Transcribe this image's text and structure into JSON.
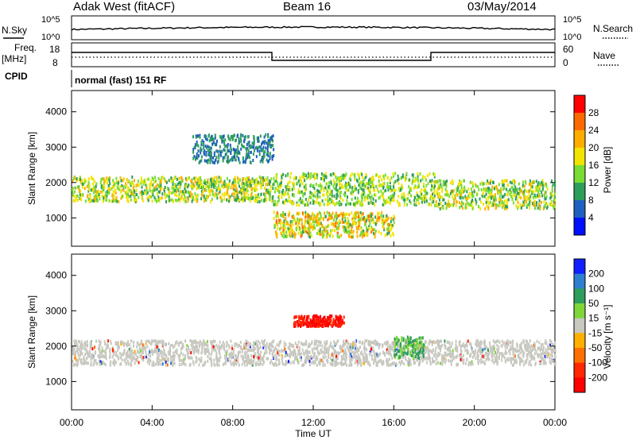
{
  "header": {
    "title_left": "Adak West (fitACF)",
    "title_mid": "Beam 16",
    "title_right": "03/May/2014"
  },
  "top_panels": {
    "nsky_label": "N.Sky",
    "nsearch_label": "N.Search",
    "noise_ticks": [
      "10^5",
      "10^0"
    ],
    "freq_label": "Freq.",
    "freq_unit": "[MHz]",
    "freq_ticks": [
      "18",
      "8"
    ],
    "nave_label": "Nave",
    "nave_ticks": [
      "60",
      "0"
    ],
    "cpid_label": "CPID",
    "cpid_text": "normal (fast) 151 RF"
  },
  "chart_data": [
    {
      "type": "heatmap",
      "panel": "power",
      "ylabel": "Slant Range [km]",
      "xlim_hours": [
        0,
        24
      ],
      "ylim_km": [
        200,
        4600
      ],
      "y_ticks": [
        "4000",
        "3000",
        "2000",
        "1000"
      ],
      "x_ticks": [
        "00:00",
        "04:00",
        "08:00",
        "12:00",
        "16:00",
        "20:00",
        "00:00"
      ],
      "colorbar": {
        "label": "Power [dB]",
        "ticks": [
          "28",
          "24",
          "20",
          "16",
          "12",
          "8",
          "4"
        ],
        "colors": [
          "#ff0000",
          "#ff6a00",
          "#ffae00",
          "#f2e400",
          "#78dc32",
          "#2e9e5c",
          "#1f5fbf",
          "#0010ff"
        ]
      },
      "echo_regions": [
        {
          "name": "main band",
          "hours": [
            0,
            10
          ],
          "range_km": [
            1500,
            2200
          ],
          "peak_db": 22
        },
        {
          "name": "afternoon band",
          "hours": [
            10,
            18
          ],
          "range_km": [
            1400,
            2300
          ],
          "peak_db": 20
        },
        {
          "name": "near range echoes",
          "hours": [
            10,
            16
          ],
          "range_km": [
            500,
            1200
          ],
          "peak_db": 26
        },
        {
          "name": "evening band",
          "hours": [
            18,
            24
          ],
          "range_km": [
            1300,
            2100
          ],
          "peak_db": 22
        },
        {
          "name": "high range echoes",
          "hours": [
            6,
            10
          ],
          "range_km": [
            2600,
            3400
          ],
          "peak_db": 12
        }
      ]
    },
    {
      "type": "heatmap",
      "panel": "velocity",
      "ylabel": "Slant Range [km]",
      "xlabel": "Time UT",
      "xlim_hours": [
        0,
        24
      ],
      "ylim_km": [
        200,
        4600
      ],
      "y_ticks": [
        "4000",
        "3000",
        "2000",
        "1000"
      ],
      "x_ticks": [
        "00:00",
        "04:00",
        "08:00",
        "12:00",
        "16:00",
        "20:00",
        "00:00"
      ],
      "colorbar": {
        "label": "Velocity [m s⁻¹]",
        "ticks": [
          "200",
          "100",
          "50",
          "15",
          "-15",
          "-50",
          "-100",
          "-200"
        ],
        "colors": [
          "#1020ff",
          "#2e7fd0",
          "#2e9e5c",
          "#7ed63a",
          "#c8c8c0",
          "#ffb000",
          "#ff7000",
          "#ff2800",
          "#ff0000"
        ]
      },
      "echo_regions": [
        {
          "name": "ground scatter",
          "hours": [
            0,
            24
          ],
          "range_km": [
            1500,
            2200
          ],
          "velocity": 0
        },
        {
          "name": "positive echoes",
          "hours": [
            16,
            17.5
          ],
          "range_km": [
            1700,
            2300
          ],
          "velocity": 50
        },
        {
          "name": "negative echoes",
          "hours": [
            11,
            13.5
          ],
          "range_km": [
            2600,
            2900
          ],
          "velocity": -150
        }
      ]
    }
  ]
}
